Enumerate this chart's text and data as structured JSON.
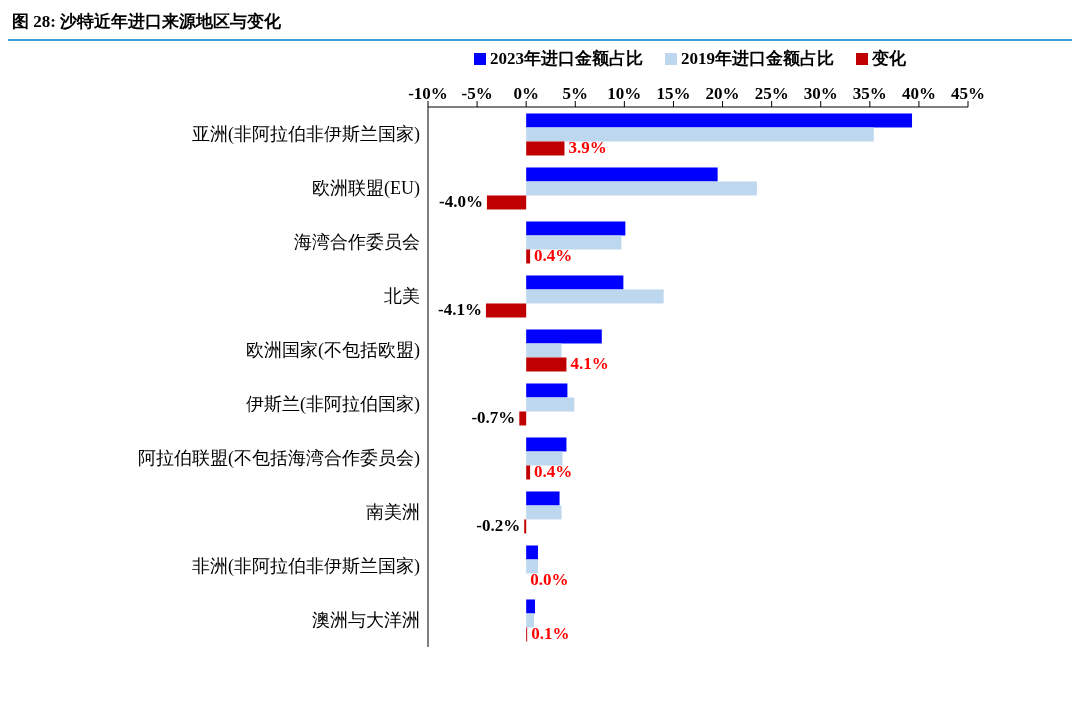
{
  "chart_data": {
    "type": "bar",
    "orientation": "horizontal",
    "title": "图 28:  沙特近年进口来源地区与变化",
    "categories": [
      "亚洲(非阿拉伯非伊斯兰国家)",
      "欧洲联盟(EU)",
      "海湾合作委员会",
      "北美",
      "欧洲国家(不包括欧盟)",
      "伊斯兰(非阿拉伯国家)",
      "阿拉伯联盟(不包括海湾合作委员会)",
      "南美洲",
      "非洲(非阿拉伯非伊斯兰国家)",
      "澳洲与大洋洲"
    ],
    "series": [
      {
        "name": "2023年进口金额占比",
        "color": "#0000ff",
        "values": [
          39.3,
          19.5,
          10.1,
          9.9,
          7.7,
          4.2,
          4.1,
          3.4,
          1.2,
          0.9
        ]
      },
      {
        "name": "2019年进口金额占比",
        "color": "#bdd7ee",
        "values": [
          35.4,
          23.5,
          9.7,
          14.0,
          3.6,
          4.9,
          3.7,
          3.6,
          1.2,
          0.8
        ]
      },
      {
        "name": "变化",
        "color": "#c00000",
        "values": [
          3.9,
          -4.0,
          0.4,
          -4.1,
          4.1,
          -0.7,
          0.4,
          -0.2,
          0.0,
          0.1
        ],
        "value_labels": [
          "3.9%",
          "-4.0%",
          "0.4%",
          "-4.1%",
          "4.1%",
          "-0.7%",
          "0.4%",
          "-0.2%",
          "0.0%",
          "0.1%"
        ]
      }
    ],
    "xlim": [
      -10,
      45
    ],
    "xticks": [
      {
        "value": -10,
        "label": "-10%"
      },
      {
        "value": -5,
        "label": "-5%"
      },
      {
        "value": 0,
        "label": "0%"
      },
      {
        "value": 5,
        "label": "5%"
      },
      {
        "value": 10,
        "label": "10%"
      },
      {
        "value": 15,
        "label": "15%"
      },
      {
        "value": 20,
        "label": "20%"
      },
      {
        "value": 25,
        "label": "25%"
      },
      {
        "value": 30,
        "label": "30%"
      },
      {
        "value": 35,
        "label": "35%"
      },
      {
        "value": 40,
        "label": "40%"
      },
      {
        "value": 45,
        "label": "45%"
      }
    ],
    "grid": false,
    "legend": "top"
  }
}
